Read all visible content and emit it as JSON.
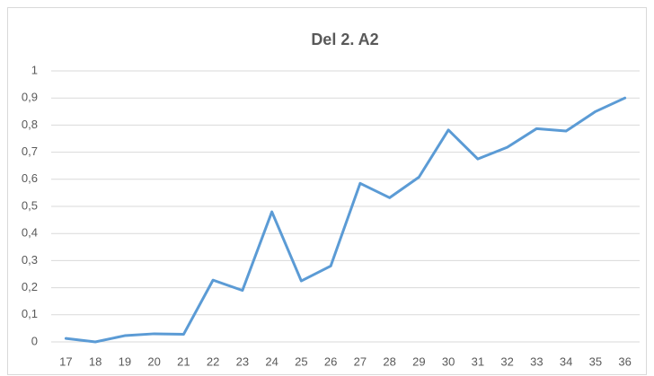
{
  "chart_data": {
    "type": "line",
    "title": "Del 2. A2",
    "categories": [
      "17",
      "18",
      "19",
      "20",
      "21",
      "22",
      "23",
      "24",
      "25",
      "26",
      "27",
      "28",
      "29",
      "30",
      "31",
      "32",
      "33",
      "34",
      "35",
      "36"
    ],
    "series": [
      {
        "name": "A2",
        "color": "#5b9bd5",
        "values": [
          0.013,
          0,
          0.023,
          0.03,
          0.028,
          0.228,
          0.19,
          0.48,
          0.225,
          0.28,
          0.585,
          0.532,
          0.608,
          0.782,
          0.675,
          0.718,
          0.787,
          0.778,
          0.85,
          0.9
        ]
      }
    ],
    "ylim": [
      0,
      1
    ],
    "yticks": [
      0,
      {
        "value": 0.1,
        "label": "0,1"
      },
      {
        "value": 0.2,
        "label": "0,2"
      },
      {
        "value": 0.3,
        "label": "0,3"
      },
      {
        "value": 0.4,
        "label": "0,4"
      },
      {
        "value": 0.5,
        "label": "0,5"
      },
      {
        "value": 0.6,
        "label": "0,6"
      },
      {
        "value": 0.7,
        "label": "0,7"
      },
      {
        "value": 0.8,
        "label": "0,8"
      },
      {
        "value": 0.9,
        "label": "0,9"
      },
      1
    ],
    "grid": true
  }
}
